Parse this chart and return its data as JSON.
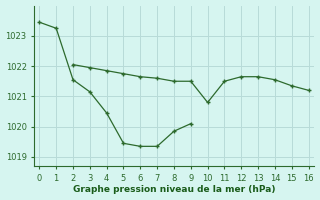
{
  "line1_x": [
    0,
    1,
    2,
    3,
    4,
    5,
    6,
    7,
    8,
    9
  ],
  "line1_y": [
    1023.45,
    1023.25,
    1021.55,
    1021.15,
    1020.45,
    1019.45,
    1019.35,
    1019.35,
    1019.85,
    1020.1
  ],
  "line2_x": [
    2,
    3,
    4,
    5,
    6,
    7,
    8,
    9,
    10,
    11,
    12,
    13,
    14,
    15,
    16
  ],
  "line2_y": [
    1022.05,
    1021.95,
    1021.85,
    1021.75,
    1021.65,
    1021.6,
    1021.5,
    1021.5,
    1020.8,
    1021.5,
    1021.65,
    1021.65,
    1021.55,
    1021.35,
    1021.2
  ],
  "line_color": "#2d6a2d",
  "bg_color": "#d6f5f0",
  "grid_color": "#b8dbd8",
  "xlabel": "Graphe pression niveau de la mer (hPa)",
  "xlabel_color": "#1a5c1a",
  "ylim": [
    1018.7,
    1024.0
  ],
  "xlim": [
    -0.3,
    16.3
  ],
  "yticks": [
    1019,
    1020,
    1021,
    1022,
    1023
  ],
  "xticks": [
    0,
    1,
    2,
    3,
    4,
    5,
    6,
    7,
    8,
    9,
    10,
    11,
    12,
    13,
    14,
    15,
    16
  ],
  "figsize": [
    3.2,
    2.0
  ],
  "dpi": 100
}
